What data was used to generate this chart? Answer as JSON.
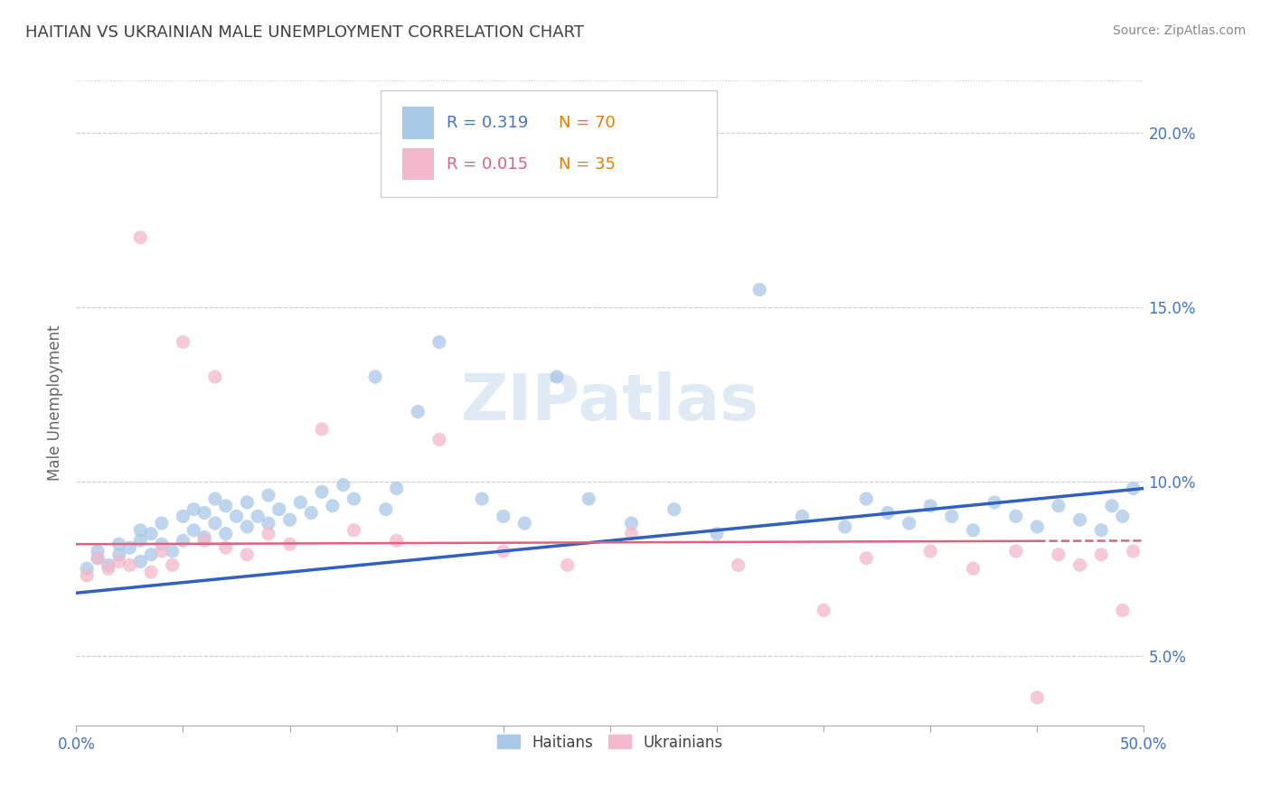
{
  "title": "HAITIAN VS UKRAINIAN MALE UNEMPLOYMENT CORRELATION CHART",
  "source": "Source: ZipAtlas.com",
  "ylabel": "Male Unemployment",
  "xlim": [
    0.0,
    0.5
  ],
  "ylim": [
    0.03,
    0.215
  ],
  "yticks": [
    0.05,
    0.1,
    0.15,
    0.2
  ],
  "ytick_labels": [
    "5.0%",
    "10.0%",
    "15.0%",
    "20.0%"
  ],
  "xticks": [
    0.0,
    0.05,
    0.1,
    0.15,
    0.2,
    0.25,
    0.3,
    0.35,
    0.4,
    0.45,
    0.5
  ],
  "color_blue": "#a8c8e8",
  "color_pink": "#f4b8cc",
  "color_blue_line": "#3060c0",
  "color_pink_line": "#e06080",
  "color_axis": "#4472c4",
  "color_grid": "#cccccc",
  "watermark_color": "#e0eaf5",
  "haitians_x": [
    0.005,
    0.01,
    0.01,
    0.015,
    0.02,
    0.02,
    0.025,
    0.03,
    0.03,
    0.03,
    0.035,
    0.035,
    0.04,
    0.04,
    0.045,
    0.05,
    0.05,
    0.055,
    0.055,
    0.06,
    0.06,
    0.065,
    0.065,
    0.07,
    0.07,
    0.075,
    0.08,
    0.08,
    0.085,
    0.09,
    0.09,
    0.095,
    0.1,
    0.105,
    0.11,
    0.115,
    0.12,
    0.125,
    0.13,
    0.14,
    0.145,
    0.15,
    0.16,
    0.17,
    0.19,
    0.2,
    0.21,
    0.225,
    0.24,
    0.26,
    0.28,
    0.3,
    0.32,
    0.34,
    0.36,
    0.37,
    0.38,
    0.39,
    0.4,
    0.41,
    0.42,
    0.43,
    0.44,
    0.45,
    0.46,
    0.47,
    0.48,
    0.485,
    0.49,
    0.495
  ],
  "haitians_y": [
    0.075,
    0.078,
    0.08,
    0.076,
    0.082,
    0.079,
    0.081,
    0.077,
    0.083,
    0.086,
    0.079,
    0.085,
    0.082,
    0.088,
    0.08,
    0.083,
    0.09,
    0.086,
    0.092,
    0.084,
    0.091,
    0.088,
    0.095,
    0.085,
    0.093,
    0.09,
    0.087,
    0.094,
    0.09,
    0.088,
    0.096,
    0.092,
    0.089,
    0.094,
    0.091,
    0.097,
    0.093,
    0.099,
    0.095,
    0.13,
    0.092,
    0.098,
    0.12,
    0.14,
    0.095,
    0.09,
    0.088,
    0.13,
    0.095,
    0.088,
    0.092,
    0.085,
    0.155,
    0.09,
    0.087,
    0.095,
    0.091,
    0.088,
    0.093,
    0.09,
    0.086,
    0.094,
    0.09,
    0.087,
    0.093,
    0.089,
    0.086,
    0.093,
    0.09,
    0.098
  ],
  "ukrainians_x": [
    0.005,
    0.01,
    0.015,
    0.02,
    0.025,
    0.03,
    0.035,
    0.04,
    0.045,
    0.05,
    0.06,
    0.065,
    0.07,
    0.08,
    0.09,
    0.1,
    0.115,
    0.13,
    0.15,
    0.17,
    0.2,
    0.23,
    0.26,
    0.31,
    0.35,
    0.37,
    0.4,
    0.42,
    0.44,
    0.45,
    0.46,
    0.47,
    0.48,
    0.49,
    0.495
  ],
  "ukrainians_y": [
    0.073,
    0.078,
    0.075,
    0.077,
    0.076,
    0.17,
    0.074,
    0.08,
    0.076,
    0.14,
    0.083,
    0.13,
    0.081,
    0.079,
    0.085,
    0.082,
    0.115,
    0.086,
    0.083,
    0.112,
    0.08,
    0.076,
    0.085,
    0.076,
    0.063,
    0.078,
    0.08,
    0.075,
    0.08,
    0.038,
    0.079,
    0.076,
    0.079,
    0.063,
    0.08
  ],
  "blue_trend_start": 0.068,
  "blue_trend_end": 0.098,
  "pink_trend_start": 0.082,
  "pink_trend_end": 0.083
}
